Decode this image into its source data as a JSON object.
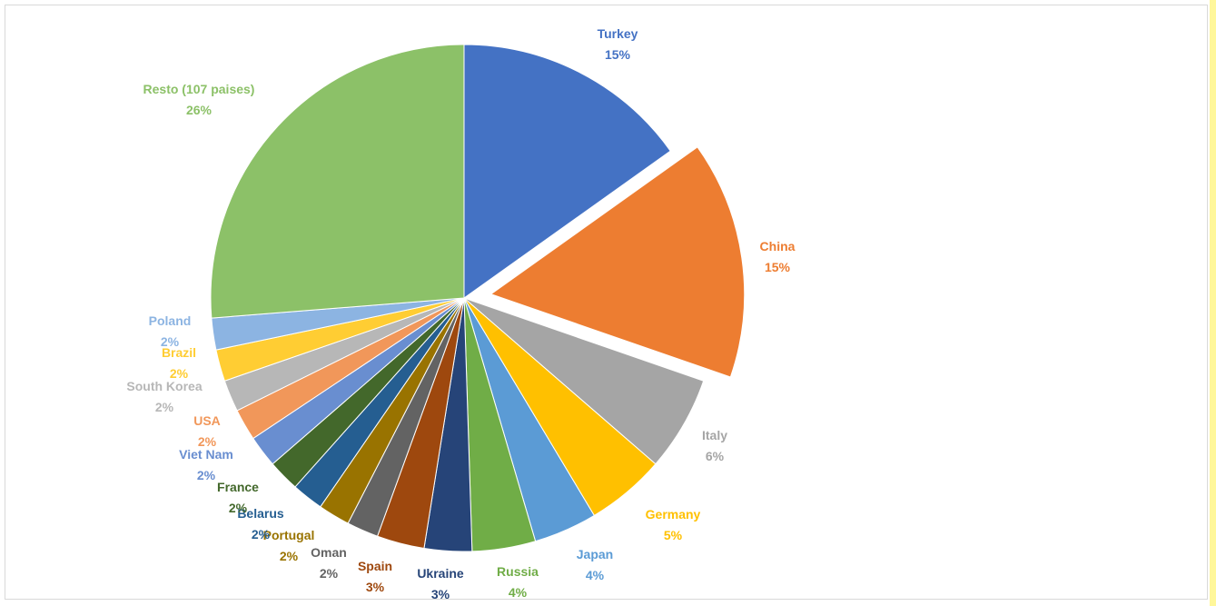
{
  "chart_data": {
    "type": "pie",
    "title": "",
    "legend": "none",
    "slices": [
      {
        "label": "Turkey",
        "value": 15,
        "pct": "15%",
        "color": "#4472c4",
        "label_color": "#4472c4"
      },
      {
        "label": "China",
        "value": 15,
        "pct": "15%",
        "color": "#ed7d31",
        "label_color": "#ed7d31",
        "exploded": true
      },
      {
        "label": "Italy",
        "value": 6,
        "pct": "6%",
        "color": "#a5a5a5",
        "label_color": "#a5a5a5"
      },
      {
        "label": "Germany",
        "value": 5,
        "pct": "5%",
        "color": "#ffc000",
        "label_color": "#ffc000"
      },
      {
        "label": "Japan",
        "value": 4,
        "pct": "4%",
        "color": "#5b9bd5",
        "label_color": "#5b9bd5"
      },
      {
        "label": "Russia",
        "value": 4,
        "pct": "4%",
        "color": "#70ad47",
        "label_color": "#70ad47"
      },
      {
        "label": "Ukraine",
        "value": 3,
        "pct": "3%",
        "color": "#264478",
        "label_color": "#264478"
      },
      {
        "label": "Spain",
        "value": 3,
        "pct": "3%",
        "color": "#9e480e",
        "label_color": "#9e480e"
      },
      {
        "label": "Oman",
        "value": 2,
        "pct": "2%",
        "color": "#636363",
        "label_color": "#636363"
      },
      {
        "label": "Portugal",
        "value": 2,
        "pct": "2%",
        "color": "#997300",
        "label_color": "#997300"
      },
      {
        "label": "Belarus",
        "value": 2,
        "pct": "2%",
        "color": "#255e91",
        "label_color": "#255e91"
      },
      {
        "label": "France",
        "value": 2,
        "pct": "2%",
        "color": "#43682b",
        "label_color": "#43682b"
      },
      {
        "label": "Viet Nam",
        "value": 2,
        "pct": "2%",
        "color": "#698ed0",
        "label_color": "#698ed0"
      },
      {
        "label": "USA",
        "value": 2,
        "pct": "2%",
        "color": "#f1975a",
        "label_color": "#f1975a"
      },
      {
        "label": "South Korea",
        "value": 2,
        "pct": "2%",
        "color": "#b7b7b7",
        "label_color": "#b7b7b7"
      },
      {
        "label": "Brazil",
        "value": 2,
        "pct": "2%",
        "color": "#ffcd33",
        "label_color": "#ffcd33"
      },
      {
        "label": "Poland",
        "value": 2,
        "pct": "2%",
        "color": "#8cb4e2",
        "label_color": "#8cb4e2"
      },
      {
        "label": "Resto (107 paises)",
        "value": 26,
        "pct": "26%",
        "color": "#8cc168",
        "label_color": "#8cc168"
      }
    ]
  }
}
